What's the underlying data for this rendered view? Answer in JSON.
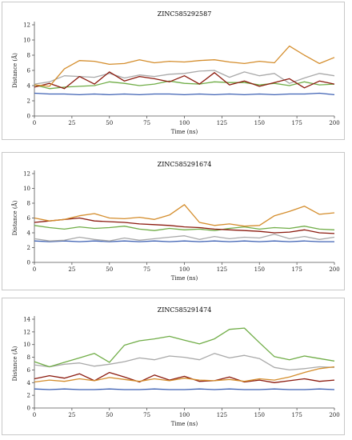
{
  "colors": {
    "blue": "#3f62b4",
    "gray": "#a9a9a9",
    "green": "#70ad47",
    "darkred": "#8b1a0e",
    "orange": "#d48d2c"
  },
  "chart_data": [
    {
      "type": "line",
      "title": "ZINC585292587",
      "xlabel": "Time (ns)",
      "ylabel": "Distance (Å)",
      "xlim": [
        0,
        200
      ],
      "ylim": [
        0,
        12
      ],
      "xticks": [
        "0",
        "25",
        "50",
        "75",
        "100",
        "125",
        "150",
        "175",
        "200"
      ],
      "yticks": [
        "0",
        "2",
        "4",
        "6",
        "8",
        "10",
        "12"
      ],
      "x": [
        0,
        10,
        20,
        30,
        40,
        50,
        60,
        70,
        80,
        90,
        100,
        110,
        120,
        130,
        140,
        150,
        160,
        170,
        180,
        190,
        200
      ],
      "series": [
        {
          "color": "blue",
          "values": [
            3.0,
            2.9,
            2.9,
            2.8,
            2.9,
            2.8,
            2.9,
            2.8,
            2.9,
            2.9,
            2.8,
            2.9,
            2.8,
            2.9,
            2.8,
            2.9,
            2.8,
            2.9,
            2.9,
            3.0,
            2.8
          ]
        },
        {
          "color": "gray",
          "values": [
            4.2,
            4.5,
            5.3,
            5.2,
            5.1,
            5.6,
            5.0,
            5.4,
            5.2,
            5.5,
            5.6,
            5.9,
            6.0,
            5.1,
            5.8,
            5.3,
            5.6,
            4.3,
            5.0,
            5.6,
            5.3
          ]
        },
        {
          "color": "green",
          "values": [
            4.1,
            3.6,
            3.8,
            3.9,
            4.0,
            4.5,
            4.3,
            4.0,
            4.2,
            4.6,
            4.3,
            4.2,
            4.5,
            4.4,
            4.4,
            4.1,
            4.3,
            4.0,
            4.5,
            4.1,
            4.2
          ]
        },
        {
          "color": "darkred",
          "values": [
            3.8,
            4.3,
            3.6,
            5.2,
            4.2,
            5.8,
            4.6,
            5.2,
            4.9,
            4.5,
            5.3,
            4.2,
            5.7,
            4.1,
            4.6,
            3.9,
            4.4,
            4.9,
            3.7,
            4.6,
            4.2
          ]
        },
        {
          "color": "orange",
          "values": [
            4.1,
            3.9,
            6.2,
            7.3,
            7.2,
            6.8,
            6.9,
            7.4,
            7.0,
            7.2,
            7.1,
            7.3,
            7.4,
            7.1,
            6.9,
            7.2,
            7.0,
            9.2,
            8.0,
            6.9,
            7.7
          ]
        }
      ]
    },
    {
      "type": "line",
      "title": "ZINC585291674",
      "xlabel": "Time (ns)",
      "ylabel": "Distance (Å)",
      "xlim": [
        0,
        200
      ],
      "ylim": [
        0,
        12
      ],
      "xticks": [
        "0",
        "25",
        "50",
        "75",
        "100",
        "125",
        "150",
        "175",
        "200"
      ],
      "yticks": [
        "0",
        "2",
        "4",
        "6",
        "8",
        "10",
        "12"
      ],
      "x": [
        0,
        10,
        20,
        30,
        40,
        50,
        60,
        70,
        80,
        90,
        100,
        110,
        120,
        130,
        140,
        150,
        160,
        170,
        180,
        190,
        200
      ],
      "series": [
        {
          "color": "blue",
          "values": [
            2.9,
            2.8,
            2.9,
            2.8,
            2.9,
            2.8,
            2.9,
            2.8,
            2.9,
            2.8,
            2.9,
            2.8,
            2.9,
            2.8,
            2.9,
            2.8,
            2.9,
            2.8,
            2.9,
            2.8,
            2.8
          ]
        },
        {
          "color": "gray",
          "values": [
            3.2,
            2.9,
            3.0,
            3.4,
            3.1,
            2.9,
            3.3,
            3.0,
            3.2,
            3.4,
            3.6,
            3.1,
            3.5,
            3.2,
            3.4,
            3.3,
            3.8,
            3.2,
            3.5,
            3.1,
            3.4
          ]
        },
        {
          "color": "green",
          "values": [
            5.0,
            4.7,
            4.5,
            4.8,
            4.6,
            4.7,
            4.9,
            4.5,
            4.3,
            4.6,
            4.4,
            4.5,
            4.3,
            4.6,
            4.8,
            4.5,
            4.7,
            4.6,
            4.9,
            4.5,
            4.4
          ]
        },
        {
          "color": "darkred",
          "values": [
            5.4,
            5.6,
            5.8,
            6.0,
            5.6,
            5.5,
            5.4,
            5.2,
            5.1,
            5.0,
            4.8,
            4.7,
            4.5,
            4.4,
            4.3,
            4.2,
            4.0,
            4.1,
            4.4,
            4.0,
            3.9
          ]
        },
        {
          "color": "orange",
          "values": [
            6.0,
            5.6,
            5.8,
            6.3,
            6.6,
            6.0,
            5.9,
            6.1,
            5.8,
            6.4,
            7.8,
            5.4,
            5.0,
            5.2,
            4.9,
            5.0,
            6.3,
            6.9,
            7.6,
            6.5,
            6.7
          ]
        }
      ]
    },
    {
      "type": "line",
      "title": "ZINC585291474",
      "xlabel": "Time (ns)",
      "ylabel": "Distance (Å)",
      "xlim": [
        0,
        200
      ],
      "ylim": [
        0,
        14
      ],
      "xticks": [
        "0",
        "25",
        "50",
        "75",
        "100",
        "125",
        "150",
        "175",
        "200"
      ],
      "yticks": [
        "0",
        "2",
        "4",
        "6",
        "8",
        "10",
        "12",
        "14"
      ],
      "x": [
        0,
        10,
        20,
        30,
        40,
        50,
        60,
        70,
        80,
        90,
        100,
        110,
        120,
        130,
        140,
        150,
        160,
        170,
        180,
        190,
        200
      ],
      "series": [
        {
          "color": "blue",
          "values": [
            3.0,
            2.9,
            3.0,
            2.9,
            2.9,
            3.0,
            2.9,
            2.9,
            3.0,
            2.9,
            2.9,
            3.0,
            2.9,
            3.0,
            2.9,
            2.9,
            3.0,
            2.9,
            2.9,
            3.0,
            2.9
          ]
        },
        {
          "color": "gray",
          "values": [
            6.8,
            6.5,
            6.9,
            7.1,
            6.6,
            6.9,
            7.3,
            7.9,
            7.6,
            8.2,
            8.0,
            7.6,
            8.6,
            7.9,
            8.3,
            7.8,
            6.4,
            6.0,
            6.2,
            6.5,
            6.4
          ]
        },
        {
          "color": "green",
          "values": [
            7.3,
            6.5,
            7.2,
            7.9,
            8.6,
            7.2,
            9.9,
            10.6,
            10.9,
            11.3,
            10.7,
            10.1,
            10.9,
            12.4,
            12.6,
            10.3,
            8.1,
            7.6,
            8.2,
            7.8,
            7.4
          ]
        },
        {
          "color": "darkred",
          "values": [
            4.6,
            5.1,
            4.7,
            5.4,
            4.3,
            5.6,
            4.9,
            4.1,
            5.2,
            4.4,
            5.0,
            4.2,
            4.3,
            4.9,
            4.1,
            4.4,
            4.0,
            4.3,
            4.6,
            4.2,
            4.4
          ]
        },
        {
          "color": "orange",
          "values": [
            4.1,
            4.4,
            4.2,
            4.6,
            4.3,
            4.8,
            4.5,
            4.2,
            4.6,
            4.3,
            4.7,
            4.4,
            4.3,
            4.5,
            4.2,
            4.6,
            4.4,
            4.9,
            5.6,
            6.2,
            6.5
          ]
        }
      ]
    }
  ]
}
